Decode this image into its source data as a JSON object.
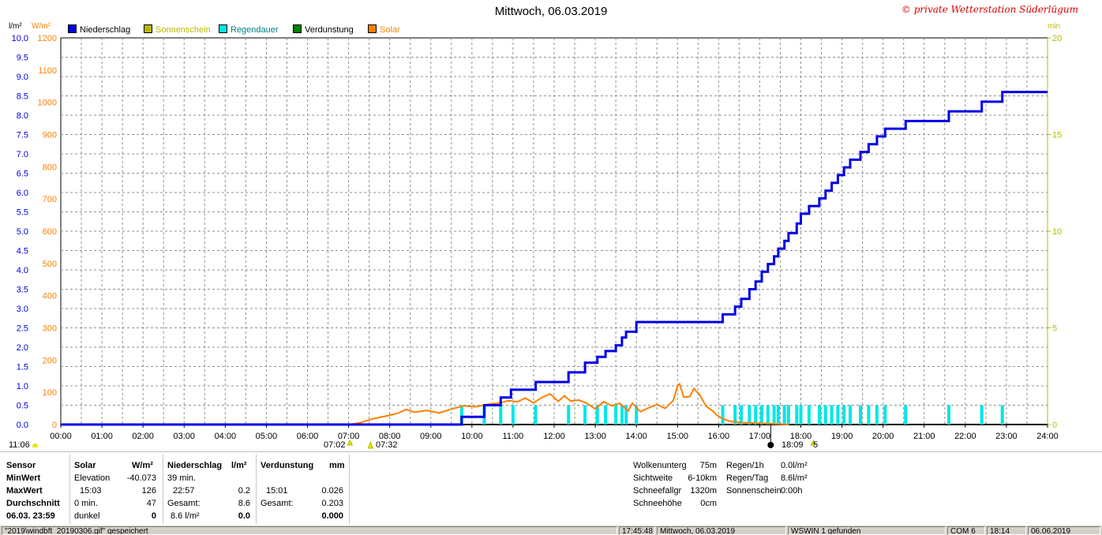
{
  "title": "Mittwoch, 06.03.2019",
  "copyright": "© private Wetterstation Süderlügum",
  "units": {
    "left1": "l/m²",
    "left2": "W/m²",
    "right": "min"
  },
  "colors": {
    "niederschlag": "#0000e6",
    "sonnenschein": "#b8b800",
    "regendauer": "#00e6e6",
    "verdunstung": "#008000",
    "solar": "#ff8000",
    "grid": "#808080",
    "copyright": "#d60000"
  },
  "legend": [
    {
      "label": "Niederschlag",
      "color": "#0000e6",
      "text_color": "#000000"
    },
    {
      "label": "Sonnenschein",
      "color": "#b8b800",
      "text_color": "#b8b800"
    },
    {
      "label": "Regendauer",
      "color": "#00e6e6",
      "text_color": "#008080"
    },
    {
      "label": "Verdunstung",
      "color": "#008000",
      "text_color": "#000000"
    },
    {
      "label": "Solar",
      "color": "#ff8000",
      "text_color": "#ff8000"
    }
  ],
  "chart_data": {
    "type": "line",
    "x_unit": "hour",
    "xlim": [
      0,
      24
    ],
    "x_ticks": [
      "00:00",
      "01:00",
      "02:00",
      "03:00",
      "04:00",
      "05:00",
      "06:00",
      "07:00",
      "08:00",
      "09:00",
      "10:00",
      "11:00",
      "12:00",
      "13:00",
      "14:00",
      "15:00",
      "16:00",
      "17:00",
      "18:00",
      "19:00",
      "20:00",
      "21:00",
      "22:00",
      "23:00",
      "24:00"
    ],
    "axes": {
      "left_precip": {
        "label": "l/m²",
        "range": [
          0,
          10
        ],
        "ticks": [
          "0.0",
          "0.5",
          "1.0",
          "1.5",
          "2.0",
          "2.5",
          "3.0",
          "3.5",
          "4.0",
          "4.5",
          "5.0",
          "5.5",
          "6.0",
          "6.5",
          "7.0",
          "7.5",
          "8.0",
          "8.5",
          "9.0",
          "9.5",
          "10.0"
        ]
      },
      "left_solar": {
        "label": "W/m²",
        "range": [
          0,
          1200
        ],
        "ticks": [
          "0",
          "100",
          "200",
          "300",
          "400",
          "500",
          "600",
          "700",
          "800",
          "900",
          "1000",
          "1100",
          "1200"
        ]
      },
      "right_minutes": {
        "label": "min",
        "range": [
          0,
          20
        ],
        "ticks": [
          "0",
          "5",
          "10",
          "15",
          "20"
        ]
      }
    },
    "sun_markers": {
      "sunrise": "07:02",
      "twilight": "07:32",
      "sunset": "18:09",
      "sunset_extra": "5",
      "day_length": "11:06"
    },
    "series": [
      {
        "name": "Niederschlag",
        "axis": "left_precip",
        "style": "step",
        "points": [
          [
            0,
            0
          ],
          [
            9.75,
            0
          ],
          [
            9.75,
            0.2
          ],
          [
            10.3,
            0.2
          ],
          [
            10.3,
            0.5
          ],
          [
            10.7,
            0.5
          ],
          [
            10.7,
            0.7
          ],
          [
            10.95,
            0.7
          ],
          [
            10.95,
            0.9
          ],
          [
            11.55,
            0.9
          ],
          [
            11.55,
            1.1
          ],
          [
            12.35,
            1.1
          ],
          [
            12.35,
            1.35
          ],
          [
            12.75,
            1.35
          ],
          [
            12.75,
            1.6
          ],
          [
            13.05,
            1.6
          ],
          [
            13.05,
            1.75
          ],
          [
            13.25,
            1.75
          ],
          [
            13.25,
            1.9
          ],
          [
            13.5,
            1.9
          ],
          [
            13.5,
            2.05
          ],
          [
            13.65,
            2.05
          ],
          [
            13.65,
            2.25
          ],
          [
            13.75,
            2.25
          ],
          [
            13.75,
            2.4
          ],
          [
            14.0,
            2.4
          ],
          [
            14.0,
            2.65
          ],
          [
            16.1,
            2.65
          ],
          [
            16.1,
            2.85
          ],
          [
            16.4,
            2.85
          ],
          [
            16.4,
            3.05
          ],
          [
            16.55,
            3.05
          ],
          [
            16.55,
            3.25
          ],
          [
            16.75,
            3.25
          ],
          [
            16.75,
            3.5
          ],
          [
            16.9,
            3.5
          ],
          [
            16.9,
            3.7
          ],
          [
            17.05,
            3.7
          ],
          [
            17.05,
            3.95
          ],
          [
            17.2,
            3.95
          ],
          [
            17.2,
            4.15
          ],
          [
            17.35,
            4.15
          ],
          [
            17.35,
            4.35
          ],
          [
            17.45,
            4.35
          ],
          [
            17.45,
            4.55
          ],
          [
            17.6,
            4.55
          ],
          [
            17.6,
            4.75
          ],
          [
            17.7,
            4.75
          ],
          [
            17.7,
            4.95
          ],
          [
            17.9,
            4.95
          ],
          [
            17.9,
            5.2
          ],
          [
            18.0,
            5.2
          ],
          [
            18.0,
            5.45
          ],
          [
            18.2,
            5.45
          ],
          [
            18.2,
            5.65
          ],
          [
            18.45,
            5.65
          ],
          [
            18.45,
            5.85
          ],
          [
            18.6,
            5.85
          ],
          [
            18.6,
            6.05
          ],
          [
            18.75,
            6.05
          ],
          [
            18.75,
            6.25
          ],
          [
            18.9,
            6.25
          ],
          [
            18.9,
            6.45
          ],
          [
            19.05,
            6.45
          ],
          [
            19.05,
            6.65
          ],
          [
            19.2,
            6.65
          ],
          [
            19.2,
            6.85
          ],
          [
            19.45,
            6.85
          ],
          [
            19.45,
            7.05
          ],
          [
            19.65,
            7.05
          ],
          [
            19.65,
            7.25
          ],
          [
            19.85,
            7.25
          ],
          [
            19.85,
            7.45
          ],
          [
            20.05,
            7.45
          ],
          [
            20.05,
            7.65
          ],
          [
            20.55,
            7.65
          ],
          [
            20.55,
            7.85
          ],
          [
            21.6,
            7.85
          ],
          [
            21.6,
            8.1
          ],
          [
            22.4,
            8.1
          ],
          [
            22.4,
            8.35
          ],
          [
            22.9,
            8.35
          ],
          [
            22.9,
            8.6
          ],
          [
            24,
            8.6
          ]
        ]
      },
      {
        "name": "Solar",
        "axis": "left_solar",
        "style": "line",
        "points": [
          [
            0,
            0
          ],
          [
            7.02,
            0
          ],
          [
            7.3,
            6
          ],
          [
            7.6,
            18
          ],
          [
            7.9,
            26
          ],
          [
            8.2,
            35
          ],
          [
            8.4,
            47
          ],
          [
            8.6,
            38
          ],
          [
            8.9,
            44
          ],
          [
            9.2,
            36
          ],
          [
            9.5,
            48
          ],
          [
            9.8,
            58
          ],
          [
            10.1,
            55
          ],
          [
            10.4,
            63
          ],
          [
            10.6,
            66
          ],
          [
            10.9,
            74
          ],
          [
            11.1,
            70
          ],
          [
            11.3,
            82
          ],
          [
            11.5,
            67
          ],
          [
            11.7,
            84
          ],
          [
            11.9,
            95
          ],
          [
            12.1,
            72
          ],
          [
            12.25,
            89
          ],
          [
            12.4,
            73
          ],
          [
            12.6,
            76
          ],
          [
            12.8,
            66
          ],
          [
            13.0,
            48
          ],
          [
            13.2,
            71
          ],
          [
            13.4,
            58
          ],
          [
            13.6,
            66
          ],
          [
            13.8,
            42
          ],
          [
            13.9,
            66
          ],
          [
            14.1,
            40
          ],
          [
            14.3,
            52
          ],
          [
            14.5,
            62
          ],
          [
            14.7,
            50
          ],
          [
            14.9,
            75
          ],
          [
            15.0,
            120
          ],
          [
            15.05,
            126
          ],
          [
            15.15,
            85
          ],
          [
            15.3,
            87
          ],
          [
            15.4,
            112
          ],
          [
            15.55,
            90
          ],
          [
            15.7,
            56
          ],
          [
            15.85,
            43
          ],
          [
            15.95,
            30
          ],
          [
            16.1,
            18
          ],
          [
            16.3,
            9
          ],
          [
            16.6,
            6
          ],
          [
            17.0,
            4
          ],
          [
            17.4,
            2
          ],
          [
            17.7,
            0
          ]
        ]
      },
      {
        "name": "Regendauer",
        "axis": "right_minutes",
        "style": "bar",
        "points": [
          [
            9.75,
            1
          ],
          [
            10.3,
            1
          ],
          [
            10.7,
            1
          ],
          [
            11.0,
            1
          ],
          [
            11.55,
            1
          ],
          [
            12.35,
            1
          ],
          [
            12.75,
            1
          ],
          [
            13.05,
            1
          ],
          [
            13.25,
            1
          ],
          [
            13.5,
            1
          ],
          [
            13.65,
            1
          ],
          [
            13.75,
            1
          ],
          [
            14.0,
            1
          ],
          [
            16.1,
            1
          ],
          [
            16.4,
            1
          ],
          [
            16.55,
            1
          ],
          [
            16.75,
            1
          ],
          [
            16.9,
            1
          ],
          [
            17.05,
            1
          ],
          [
            17.2,
            1
          ],
          [
            17.35,
            1
          ],
          [
            17.45,
            1
          ],
          [
            17.6,
            1
          ],
          [
            17.7,
            1
          ],
          [
            17.9,
            1
          ],
          [
            18.0,
            1
          ],
          [
            18.2,
            1
          ],
          [
            18.45,
            1
          ],
          [
            18.6,
            1
          ],
          [
            18.75,
            1
          ],
          [
            18.9,
            1
          ],
          [
            19.05,
            1
          ],
          [
            19.2,
            1
          ],
          [
            19.45,
            1
          ],
          [
            19.65,
            1
          ],
          [
            19.85,
            1
          ],
          [
            20.05,
            1
          ],
          [
            20.55,
            1
          ],
          [
            21.6,
            1
          ],
          [
            22.4,
            1
          ],
          [
            22.9,
            1
          ]
        ]
      }
    ]
  },
  "panel": {
    "sensor": {
      "header": "Sensor",
      "rows": [
        "MinWert",
        "MaxWert",
        "Durchschnitt",
        "06.03. 23:59"
      ]
    },
    "solar": {
      "header": "Solar",
      "unit": "W/m²",
      "rows": [
        [
          "Elevation",
          "-40.073"
        ],
        [
          "15:03",
          "126"
        ],
        [
          "0 min.",
          "47"
        ],
        [
          "dunkel",
          "0"
        ]
      ]
    },
    "niederschlag": {
      "header": "Niederschlag",
      "unit": "l/m²",
      "rows": [
        [
          "39 min.",
          ""
        ],
        [
          "22:57",
          "0.2"
        ],
        [
          "Gesamt:",
          "8.6"
        ],
        [
          "8.6 l/m²",
          "0.0"
        ]
      ]
    },
    "verdunstung": {
      "header": "Verdunstung",
      "unit": "mm",
      "rows": [
        [
          "",
          ""
        ],
        [
          "15:01",
          "0.026"
        ],
        [
          "Gesamt:",
          "0.203"
        ],
        [
          "",
          "0.000"
        ]
      ]
    },
    "misc": [
      [
        "Wolkenunterg",
        "75m"
      ],
      [
        "Sichtweite",
        "6-10km"
      ],
      [
        "Schneefallgr",
        "1320m"
      ],
      [
        "Schneehöhe",
        "0cm"
      ]
    ],
    "regen": [
      [
        "Regen/1h",
        "0.0l/m²"
      ],
      [
        "Regen/Tag",
        "8.6l/m²"
      ],
      [
        "Sonnenschein",
        "0:00h"
      ]
    ]
  },
  "statusbar": {
    "file": "\"2019\\windbft_20190306.gif\" gespeichert",
    "time": "17:45:48",
    "date": "Mittwoch, 06.03.2019",
    "device": "WSWIN 1 gefunden",
    "port": "COM 6",
    "clock": "18:14",
    "today": "06.06.2019"
  }
}
